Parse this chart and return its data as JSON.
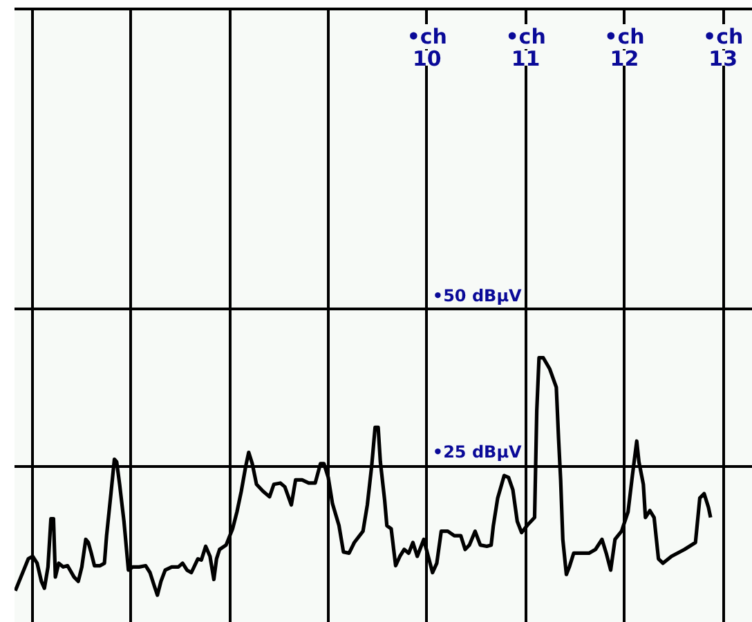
{
  "chart_data": {
    "type": "line",
    "xlim": [
      5.82,
      13.3
    ],
    "ylim": [
      0,
      98
    ],
    "xlabel": "•ch",
    "xticks": [
      {
        "value": 6,
        "label": null
      },
      {
        "value": 7,
        "label": null
      },
      {
        "value": 8,
        "label": null
      },
      {
        "value": 9,
        "label": null
      },
      10,
      11,
      12,
      13
    ],
    "yticks": [
      {
        "value": 25,
        "label": "•25 dBμV"
      },
      {
        "value": 50,
        "label": "•50 dBμV"
      }
    ],
    "grid": true,
    "line_style": "solid",
    "x": [
      5.828,
      5.96,
      6.004,
      6.049,
      6.092,
      6.123,
      6.159,
      6.189,
      6.215,
      6.234,
      6.268,
      6.313,
      6.357,
      6.423,
      6.466,
      6.502,
      6.542,
      6.568,
      6.598,
      6.63,
      6.687,
      6.731,
      6.753,
      6.797,
      6.832,
      6.855,
      6.885,
      6.929,
      6.951,
      6.974,
      7.017,
      7.083,
      7.149,
      7.193,
      7.238,
      7.268,
      7.304,
      7.347,
      7.413,
      7.48,
      7.523,
      7.568,
      7.612,
      7.678,
      7.713,
      7.757,
      7.801,
      7.84,
      7.867,
      7.898,
      7.964,
      8.03,
      8.074,
      8.118,
      8.163,
      8.193,
      8.229,
      8.272,
      8.338,
      8.404,
      8.448,
      8.514,
      8.559,
      8.625,
      8.668,
      8.734,
      8.801,
      8.867,
      8.92,
      8.955,
      8.999,
      9.042,
      9.108,
      9.153,
      9.21,
      9.263,
      9.351,
      9.395,
      9.439,
      9.474,
      9.505,
      9.527,
      9.571,
      9.593,
      9.637,
      9.682,
      9.725,
      9.769,
      9.814,
      9.857,
      9.901,
      9.967,
      10.012,
      10.056,
      10.099,
      10.144,
      10.21,
      10.276,
      10.342,
      10.386,
      10.429,
      10.487,
      10.54,
      10.606,
      10.65,
      10.672,
      10.716,
      10.782,
      10.826,
      10.87,
      10.914,
      10.958,
      11.024,
      11.09,
      11.112,
      11.135,
      11.178,
      11.244,
      11.31,
      11.333,
      11.354,
      11.376,
      11.412,
      11.442,
      11.486,
      11.575,
      11.641,
      11.707,
      11.773,
      11.816,
      11.861,
      11.905,
      11.971,
      12.037,
      12.081,
      12.125,
      12.147,
      12.192,
      12.213,
      12.258,
      12.301,
      12.345,
      12.39,
      12.477,
      12.609,
      12.72,
      12.764,
      12.808,
      12.852,
      12.873
    ],
    "series": [
      {
        "color": "#000000",
        "values": [
          5.1,
          10.2,
          10.6,
          9.5,
          6.6,
          5.5,
          8.9,
          16.6,
          16.6,
          7.3,
          9.5,
          8.9,
          9.1,
          7.3,
          6.6,
          8.9,
          13.3,
          12.8,
          11.1,
          9.1,
          9.1,
          9.5,
          13.9,
          20.6,
          26.1,
          25.7,
          22.1,
          16.2,
          12.4,
          8.4,
          8.9,
          8.9,
          9.1,
          8.0,
          5.8,
          4.4,
          6.6,
          8.4,
          8.9,
          8.9,
          9.5,
          8.4,
          8.0,
          10.2,
          10.0,
          12.2,
          10.6,
          6.9,
          10.2,
          11.7,
          12.4,
          15.0,
          17.7,
          21.0,
          25.0,
          27.2,
          25.4,
          22.1,
          21.0,
          20.1,
          22.1,
          22.3,
          21.7,
          18.8,
          22.8,
          22.8,
          22.3,
          22.3,
          25.4,
          25.4,
          23.2,
          19.0,
          15.5,
          11.3,
          11.1,
          12.8,
          14.6,
          18.8,
          25.0,
          31.2,
          31.2,
          25.7,
          19.5,
          15.5,
          15.0,
          9.1,
          10.6,
          11.7,
          11.1,
          12.8,
          10.6,
          13.3,
          10.6,
          8.0,
          9.5,
          14.6,
          14.6,
          13.9,
          13.9,
          11.7,
          12.4,
          14.6,
          12.4,
          12.2,
          12.4,
          15.5,
          19.9,
          23.5,
          23.2,
          21.2,
          16.2,
          14.4,
          15.7,
          16.8,
          33.8,
          42.3,
          42.3,
          40.5,
          37.6,
          29.4,
          22.8,
          13.3,
          7.7,
          8.9,
          11.1,
          11.1,
          11.1,
          11.7,
          13.3,
          11.1,
          8.4,
          13.3,
          14.6,
          17.7,
          23.5,
          29.0,
          25.7,
          22.1,
          16.8,
          17.9,
          16.8,
          10.2,
          9.5,
          10.6,
          11.7,
          12.8,
          19.9,
          20.6,
          18.4,
          16.8
        ]
      }
    ]
  }
}
